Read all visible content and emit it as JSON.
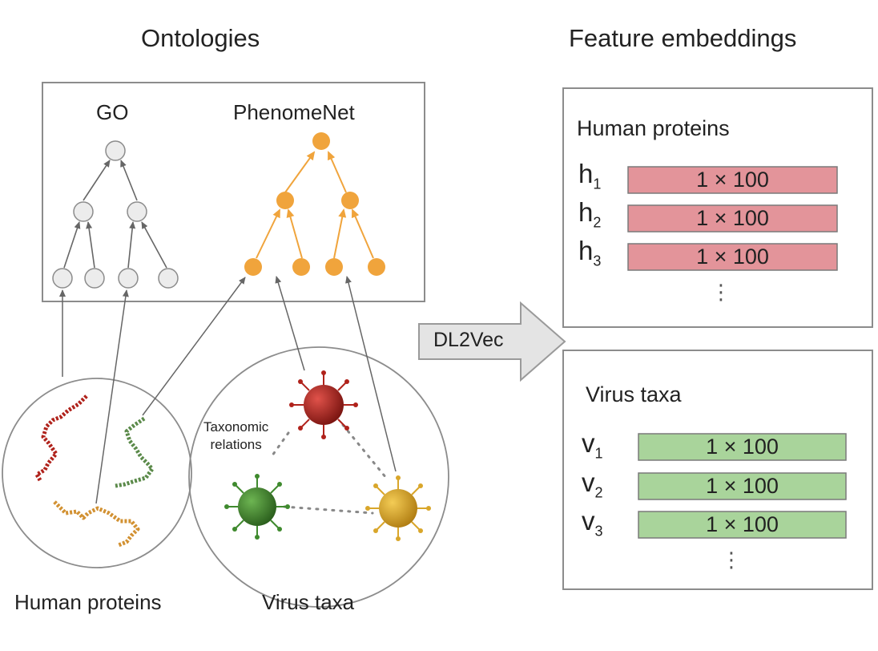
{
  "ontologies": {
    "heading": "Ontologies",
    "go_label": "GO",
    "phenomenet_label": "PhenomeNet"
  },
  "embeddings": {
    "heading": "Feature embeddings",
    "human": {
      "title": "Human proteins",
      "rows": [
        {
          "symbol": "h",
          "index": "1",
          "value": "1 × 100"
        },
        {
          "symbol": "h",
          "index": "2",
          "value": "1 × 100"
        },
        {
          "symbol": "h",
          "index": "3",
          "value": "1 × 100"
        }
      ],
      "ellipsis": "⋮"
    },
    "virus": {
      "title": "Virus taxa",
      "rows": [
        {
          "symbol": "v",
          "index": "1",
          "value": "1 × 100"
        },
        {
          "symbol": "v",
          "index": "2",
          "value": "1 × 100"
        },
        {
          "symbol": "v",
          "index": "3",
          "value": "1 × 100"
        }
      ],
      "ellipsis": "⋮"
    }
  },
  "arrow_label": "DL2Vec",
  "taxonomic_relations": [
    "Taxonomic",
    "relations"
  ],
  "bottom_labels": {
    "human": "Human proteins",
    "virus": "Virus taxa"
  },
  "colors": {
    "human_bar": "#e3949a",
    "virus_bar": "#a9d49b",
    "phenomenet": "#f0a43c",
    "go_node": "#ececec",
    "red_virus": "#b0221b",
    "green_virus": "#3f8a2e",
    "yellow_virus": "#d9a62a"
  }
}
